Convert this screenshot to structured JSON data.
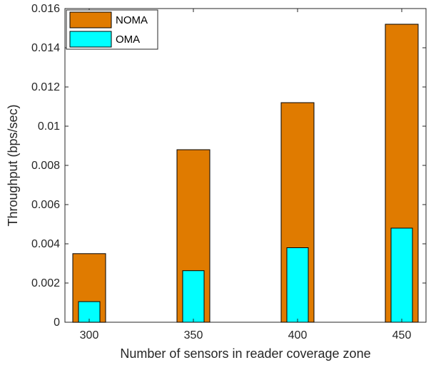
{
  "chart_data": {
    "type": "bar",
    "categories": [
      "300",
      "350",
      "400",
      "450"
    ],
    "series": [
      {
        "name": "NOMA",
        "values": [
          0.0035,
          0.0088,
          0.0112,
          0.0152
        ],
        "color": "#e07b00"
      },
      {
        "name": "OMA",
        "values": [
          0.00105,
          0.00263,
          0.0038,
          0.0048
        ],
        "color": "#00ffff"
      }
    ],
    "xlabel": "Number of sensors in reader coverage zone",
    "ylabel": "Throughput (bps/sec)",
    "ylim": [
      0,
      0.016
    ],
    "yticks": [
      "0",
      "0.002",
      "0.004",
      "0.006",
      "0.008",
      "0.01",
      "0.012",
      "0.014",
      "0.016"
    ],
    "grid": false,
    "legend_position": "top-left",
    "overlaid_bars": true
  }
}
